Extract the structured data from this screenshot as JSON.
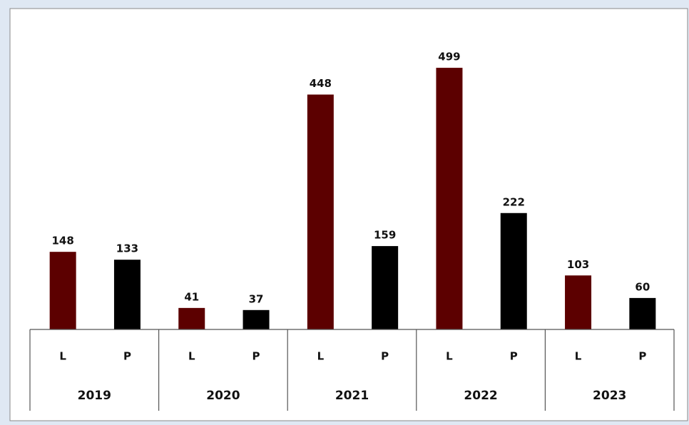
{
  "chart_data": {
    "type": "bar",
    "categories": [
      "2019",
      "2020",
      "2021",
      "2022",
      "2023"
    ],
    "series": [
      {
        "name": "L",
        "color": "#5c0000",
        "values": [
          148,
          41,
          448,
          499,
          103
        ]
      },
      {
        "name": "P",
        "color": "#000000",
        "values": [
          133,
          37,
          159,
          222,
          60
        ]
      }
    ],
    "ylim": [
      0,
      612
    ]
  }
}
